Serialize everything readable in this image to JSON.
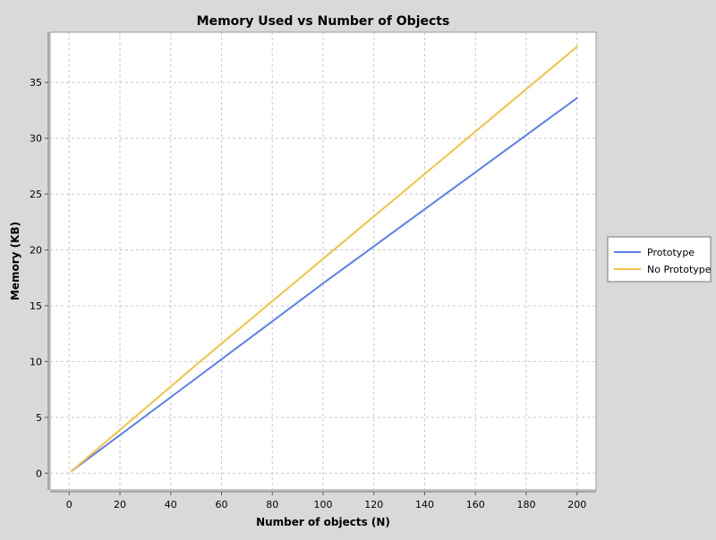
{
  "chart_data": {
    "type": "line",
    "title": "Memory Used vs Number of Objects",
    "xlabel": "Number of objects (N)",
    "ylabel": "Memory (KB)",
    "xlim": [
      -7.5,
      207.5
    ],
    "ylim": [
      -1.5,
      39.5
    ],
    "xticks": [
      0,
      20,
      40,
      60,
      80,
      100,
      120,
      140,
      160,
      180,
      200
    ],
    "yticks": [
      0,
      5,
      10,
      15,
      20,
      25,
      30,
      35
    ],
    "grid": true,
    "legend_position": "right",
    "series": [
      {
        "name": "Prototype",
        "color": "#5a7ff0",
        "x": [
          1,
          50,
          100,
          150,
          200
        ],
        "y": [
          0.2,
          8.5,
          17.0,
          25.3,
          33.6
        ]
      },
      {
        "name": "No Prototype",
        "color": "#f5c144",
        "x": [
          1,
          50,
          100,
          150,
          200
        ],
        "y": [
          0.2,
          9.7,
          19.2,
          28.7,
          38.2
        ]
      }
    ]
  },
  "colors": {
    "background": "#d9d9d9",
    "plot_background": "#ffffff",
    "grid": "#c8c8c8"
  }
}
